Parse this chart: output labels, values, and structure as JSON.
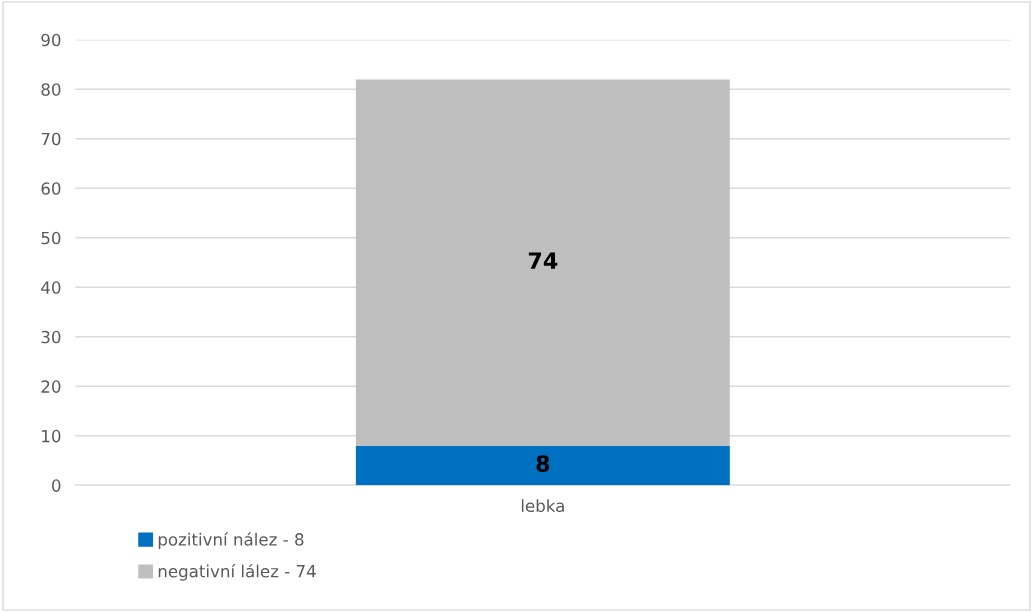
{
  "chart_data": {
    "type": "bar",
    "stacked": true,
    "categories": [
      "lebka"
    ],
    "series": [
      {
        "name": "pozitivní nález - 8",
        "color": "#0070c0",
        "values": [
          8
        ]
      },
      {
        "name": "negativní lález - 74",
        "color": "#bfbfbf",
        "values": [
          74
        ]
      }
    ],
    "ylim": [
      0,
      90
    ],
    "yticks": [
      0,
      10,
      20,
      30,
      40,
      50,
      60,
      70,
      80,
      90
    ],
    "grid": "y",
    "legend": "bottom left",
    "data_labels": true
  }
}
